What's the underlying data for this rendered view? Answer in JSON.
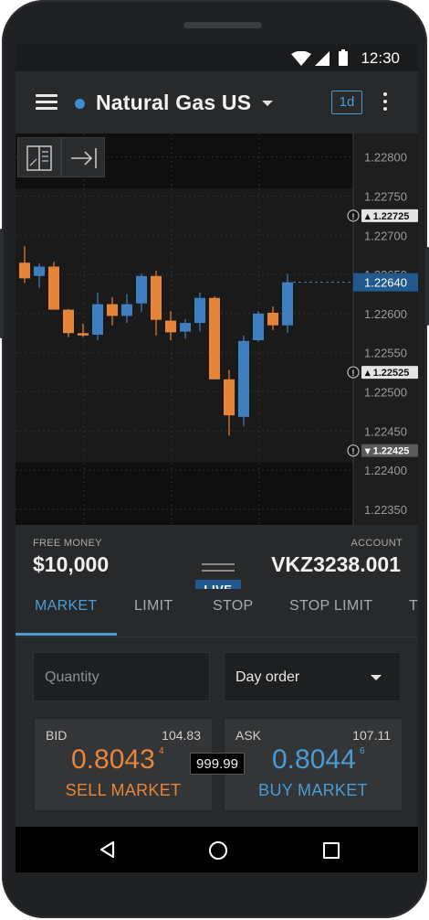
{
  "status_bar": {
    "time": "12:30"
  },
  "app_bar": {
    "instrument": "Natural Gas US",
    "timeframe": "1d",
    "live_dot_color": "#3b8fd0"
  },
  "chart_data": {
    "type": "candlestick",
    "price_axis_labels": [
      "1.22800",
      "1.22750",
      "1.22700",
      "1.22650",
      "1.22600",
      "1.22550",
      "1.22500",
      "1.22450",
      "1.22400",
      "1.22350"
    ],
    "ylim": [
      1.2233,
      1.2283
    ],
    "markers": [
      {
        "label": "1.22725",
        "style": "light"
      },
      {
        "label": "1.22640",
        "style": "current"
      },
      {
        "label": "1.22525",
        "style": "light"
      },
      {
        "label": "1.22425",
        "style": "dark"
      }
    ],
    "current_price": 1.2264,
    "candles": [
      {
        "o": 1.22665,
        "h": 1.22686,
        "l": 1.22639,
        "c": 1.22645
      },
      {
        "o": 1.22648,
        "h": 1.22664,
        "l": 1.22633,
        "c": 1.2266
      },
      {
        "o": 1.2266,
        "h": 1.22666,
        "l": 1.22605,
        "c": 1.22605
      },
      {
        "o": 1.22605,
        "h": 1.22606,
        "l": 1.2257,
        "c": 1.22575
      },
      {
        "o": 1.22575,
        "h": 1.22587,
        "l": 1.2257,
        "c": 1.22572
      },
      {
        "o": 1.22573,
        "h": 1.22627,
        "l": 1.22566,
        "c": 1.22612
      },
      {
        "o": 1.22612,
        "h": 1.22621,
        "l": 1.22585,
        "c": 1.22597
      },
      {
        "o": 1.22597,
        "h": 1.22625,
        "l": 1.22588,
        "c": 1.22612
      },
      {
        "o": 1.22613,
        "h": 1.22651,
        "l": 1.22602,
        "c": 1.22648
      },
      {
        "o": 1.22648,
        "h": 1.22655,
        "l": 1.22572,
        "c": 1.22592
      },
      {
        "o": 1.22591,
        "h": 1.22603,
        "l": 1.22566,
        "c": 1.22576
      },
      {
        "o": 1.22577,
        "h": 1.22593,
        "l": 1.22568,
        "c": 1.22588
      },
      {
        "o": 1.22588,
        "h": 1.22627,
        "l": 1.22577,
        "c": 1.2262
      },
      {
        "o": 1.2262,
        "h": 1.22622,
        "l": 1.22516,
        "c": 1.22516
      },
      {
        "o": 1.22516,
        "h": 1.22528,
        "l": 1.22444,
        "c": 1.2247
      },
      {
        "o": 1.22468,
        "h": 1.22572,
        "l": 1.22456,
        "c": 1.22565
      },
      {
        "o": 1.22566,
        "h": 1.22603,
        "l": 1.22564,
        "c": 1.226
      },
      {
        "o": 1.22601,
        "h": 1.22609,
        "l": 1.22579,
        "c": 1.22585
      },
      {
        "o": 1.22585,
        "h": 1.22651,
        "l": 1.22575,
        "c": 1.2264
      }
    ],
    "up_color": "#3f7fbf",
    "down_color": "#e5853a",
    "grid": true
  },
  "account_panel": {
    "free_money_label": "FREE MONEY",
    "free_money_value": "$10,000",
    "live_badge": "LIVE",
    "account_label": "ACCOUNT",
    "account_value": "VKZ3238.001"
  },
  "order_tabs": [
    {
      "label": "MARKET",
      "active": true
    },
    {
      "label": "LIMIT",
      "active": false
    },
    {
      "label": "STOP",
      "active": false
    },
    {
      "label": "STOP LIMIT",
      "active": false
    },
    {
      "label": "T",
      "active": false
    }
  ],
  "order_form": {
    "quantity_placeholder": "Quantity",
    "order_duration": "Day order"
  },
  "bid": {
    "label": "BID",
    "volume": "104.83",
    "price": "0.8043",
    "price_sup": "4",
    "action": "SELL MARKET",
    "color": "#e8853a"
  },
  "ask": {
    "label": "ASK",
    "volume": "107.11",
    "price": "0.8044",
    "price_sup": "6",
    "action": "BUY MARKET",
    "color": "#4a9bd6"
  },
  "spread": "999.99"
}
